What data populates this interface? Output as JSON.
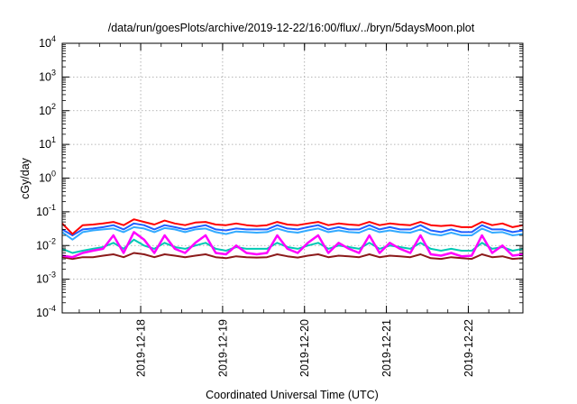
{
  "chart_data": {
    "type": "line",
    "title": "/data/run/goesPlots/archive/2019-12-22/16:00/flux/../bryn/5daysMoon.plot",
    "xlabel": "Coordinated Universal Time (UTC)",
    "ylabel": "cGy/day",
    "yscale": "log",
    "ylim": [
      0.0001,
      10000
    ],
    "xlim": [
      "2019-12-17 01:00",
      "2019-12-22 16:00"
    ],
    "x_ticks": [
      "2019-12-18",
      "2019-12-19",
      "2019-12-20",
      "2019-12-21",
      "2019-12-22"
    ],
    "y_ticks": [
      {
        "base": "10",
        "exp": "-4"
      },
      {
        "base": "10",
        "exp": "-3"
      },
      {
        "base": "10",
        "exp": "-2"
      },
      {
        "base": "10",
        "exp": "-1"
      },
      {
        "base": "10",
        "exp": "0"
      },
      {
        "base": "10",
        "exp": "1"
      },
      {
        "base": "10",
        "exp": "2"
      },
      {
        "base": "10",
        "exp": "3"
      },
      {
        "base": "10",
        "exp": "4"
      }
    ],
    "grid": true,
    "legend": "none",
    "x": [
      "2019-12-17 01:00",
      "2019-12-17 04:00",
      "2019-12-17 07:00",
      "2019-12-17 10:00",
      "2019-12-17 13:00",
      "2019-12-17 16:00",
      "2019-12-17 19:00",
      "2019-12-17 22:00",
      "2019-12-18 01:00",
      "2019-12-18 04:00",
      "2019-12-18 07:00",
      "2019-12-18 10:00",
      "2019-12-18 13:00",
      "2019-12-18 16:00",
      "2019-12-18 19:00",
      "2019-12-18 22:00",
      "2019-12-19 01:00",
      "2019-12-19 04:00",
      "2019-12-19 07:00",
      "2019-12-19 10:00",
      "2019-12-19 13:00",
      "2019-12-19 16:00",
      "2019-12-19 19:00",
      "2019-12-19 22:00",
      "2019-12-20 01:00",
      "2019-12-20 04:00",
      "2019-12-20 07:00",
      "2019-12-20 10:00",
      "2019-12-20 13:00",
      "2019-12-20 16:00",
      "2019-12-20 19:00",
      "2019-12-20 22:00",
      "2019-12-21 01:00",
      "2019-12-21 04:00",
      "2019-12-21 07:00",
      "2019-12-21 10:00",
      "2019-12-21 13:00",
      "2019-12-21 16:00",
      "2019-12-21 19:00",
      "2019-12-21 22:00",
      "2019-12-22 01:00",
      "2019-12-22 04:00",
      "2019-12-22 07:00",
      "2019-12-22 10:00",
      "2019-12-22 13:00",
      "2019-12-22 16:00"
    ],
    "series": [
      {
        "color": "#ff0000",
        "values": [
          0.045,
          0.022,
          0.04,
          0.042,
          0.045,
          0.05,
          0.04,
          0.06,
          0.05,
          0.042,
          0.055,
          0.045,
          0.04,
          0.048,
          0.05,
          0.042,
          0.04,
          0.045,
          0.04,
          0.038,
          0.04,
          0.05,
          0.042,
          0.04,
          0.045,
          0.05,
          0.04,
          0.045,
          0.042,
          0.04,
          0.05,
          0.04,
          0.045,
          0.042,
          0.04,
          0.05,
          0.04,
          0.038,
          0.04,
          0.035,
          0.035,
          0.05,
          0.04,
          0.045,
          0.035,
          0.04
        ]
      },
      {
        "color": "#1f5fff",
        "values": [
          0.03,
          0.02,
          0.03,
          0.032,
          0.035,
          0.04,
          0.03,
          0.045,
          0.04,
          0.03,
          0.04,
          0.035,
          0.03,
          0.035,
          0.04,
          0.03,
          0.028,
          0.032,
          0.03,
          0.03,
          0.03,
          0.04,
          0.032,
          0.03,
          0.035,
          0.04,
          0.03,
          0.035,
          0.03,
          0.03,
          0.04,
          0.03,
          0.035,
          0.03,
          0.03,
          0.04,
          0.028,
          0.025,
          0.03,
          0.025,
          0.025,
          0.04,
          0.03,
          0.03,
          0.025,
          0.028
        ]
      },
      {
        "color": "#33aaff",
        "values": [
          0.025,
          0.015,
          0.025,
          0.028,
          0.03,
          0.032,
          0.025,
          0.035,
          0.032,
          0.025,
          0.033,
          0.03,
          0.025,
          0.03,
          0.032,
          0.025,
          0.022,
          0.026,
          0.025,
          0.024,
          0.025,
          0.032,
          0.026,
          0.024,
          0.028,
          0.032,
          0.025,
          0.028,
          0.025,
          0.024,
          0.032,
          0.025,
          0.028,
          0.025,
          0.024,
          0.03,
          0.022,
          0.02,
          0.024,
          0.02,
          0.02,
          0.032,
          0.024,
          0.025,
          0.02,
          0.022
        ]
      },
      {
        "color": "#00c8b4",
        "values": [
          0.008,
          0.006,
          0.007,
          0.008,
          0.009,
          0.012,
          0.008,
          0.015,
          0.01,
          0.008,
          0.012,
          0.009,
          0.008,
          0.01,
          0.012,
          0.008,
          0.007,
          0.009,
          0.008,
          0.008,
          0.008,
          0.012,
          0.009,
          0.008,
          0.01,
          0.012,
          0.008,
          0.01,
          0.009,
          0.008,
          0.012,
          0.008,
          0.01,
          0.009,
          0.008,
          0.012,
          0.008,
          0.007,
          0.008,
          0.007,
          0.007,
          0.012,
          0.008,
          0.009,
          0.007,
          0.008
        ]
      },
      {
        "color": "#ff00ff",
        "values": [
          0.005,
          0.0045,
          0.006,
          0.007,
          0.008,
          0.02,
          0.006,
          0.025,
          0.015,
          0.006,
          0.02,
          0.008,
          0.006,
          0.012,
          0.02,
          0.006,
          0.0055,
          0.01,
          0.006,
          0.0055,
          0.006,
          0.02,
          0.008,
          0.006,
          0.012,
          0.02,
          0.006,
          0.012,
          0.008,
          0.006,
          0.02,
          0.006,
          0.012,
          0.008,
          0.006,
          0.02,
          0.0055,
          0.005,
          0.006,
          0.0048,
          0.005,
          0.02,
          0.006,
          0.01,
          0.005,
          0.0055
        ]
      },
      {
        "color": "#8b1a1a",
        "values": [
          0.0045,
          0.004,
          0.0045,
          0.0045,
          0.005,
          0.0055,
          0.0045,
          0.006,
          0.0055,
          0.0045,
          0.0055,
          0.005,
          0.0045,
          0.005,
          0.0055,
          0.0045,
          0.0042,
          0.0048,
          0.0045,
          0.0044,
          0.0045,
          0.0055,
          0.0048,
          0.0044,
          0.005,
          0.0055,
          0.0045,
          0.005,
          0.0048,
          0.0045,
          0.0055,
          0.0045,
          0.005,
          0.0048,
          0.0045,
          0.0055,
          0.0042,
          0.004,
          0.0045,
          0.0042,
          0.004,
          0.0055,
          0.0045,
          0.0048,
          0.004,
          0.0042
        ]
      }
    ]
  }
}
